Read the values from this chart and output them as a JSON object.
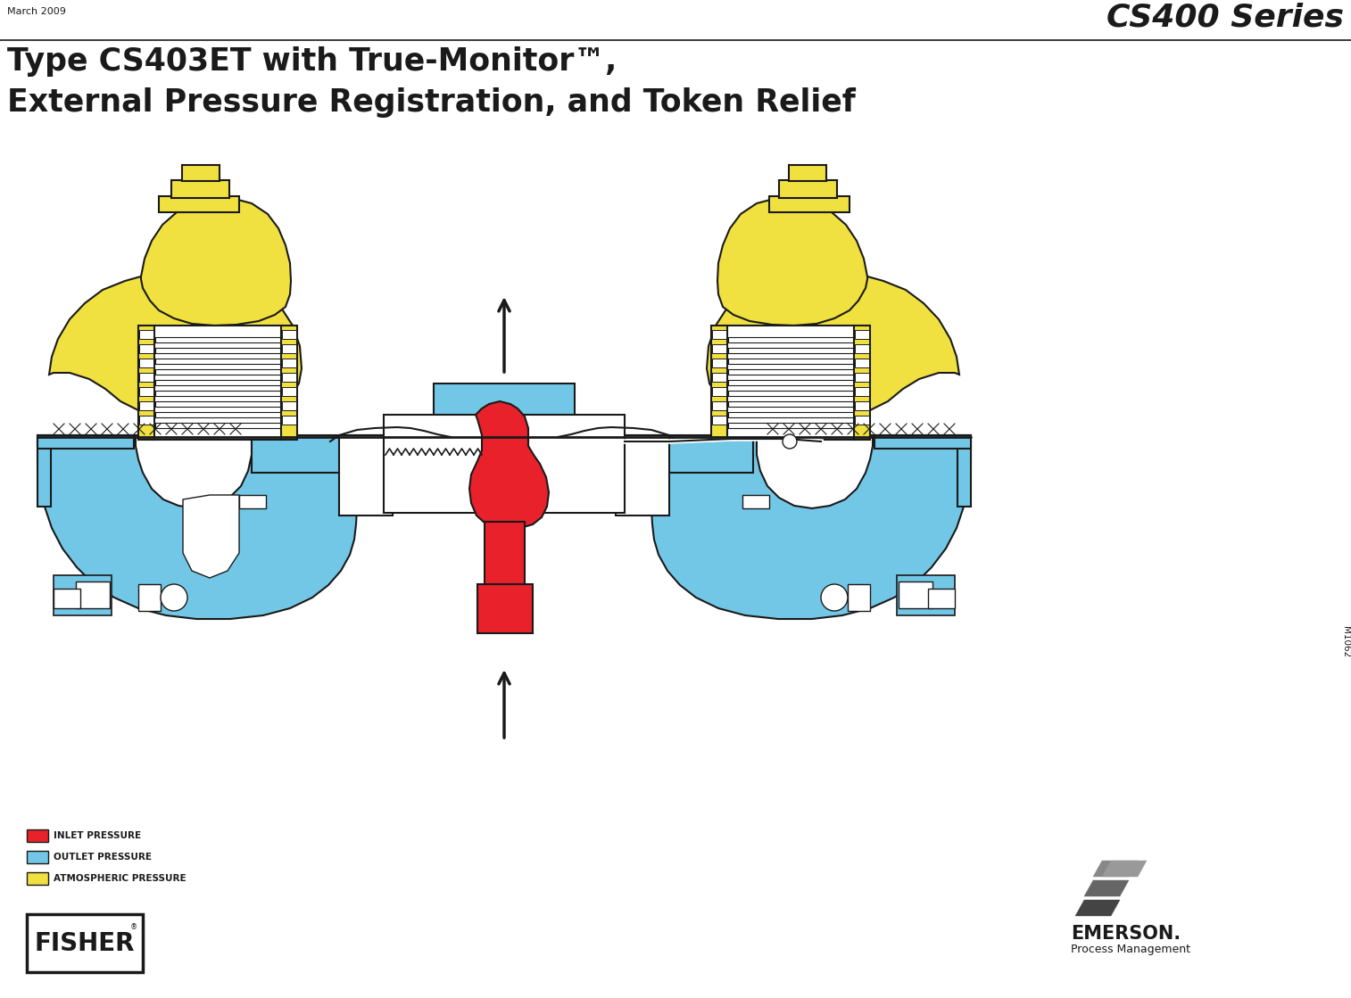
{
  "title_line1": "Type CS403ET with True-Monitor™,",
  "title_line2": "External Pressure Registration, and Token Relief",
  "series_label": "CS400 Series",
  "date_label": "March 2009",
  "doc_number": "M1062",
  "legend_items": [
    {
      "label": "INLET PRESSURE",
      "color": "#E8212A"
    },
    {
      "label": "OUTLET PRESSURE",
      "color": "#72C7E7"
    },
    {
      "label": "ATMOSPHERIC PRESSURE",
      "color": "#F0E040"
    }
  ],
  "yellow_color": "#F0E040",
  "blue_color": "#72C7E7",
  "red_color": "#E8212A",
  "dark_outline": "#1A1A1A",
  "white_color": "#FFFFFF",
  "bg_color": "#FFFFFF"
}
